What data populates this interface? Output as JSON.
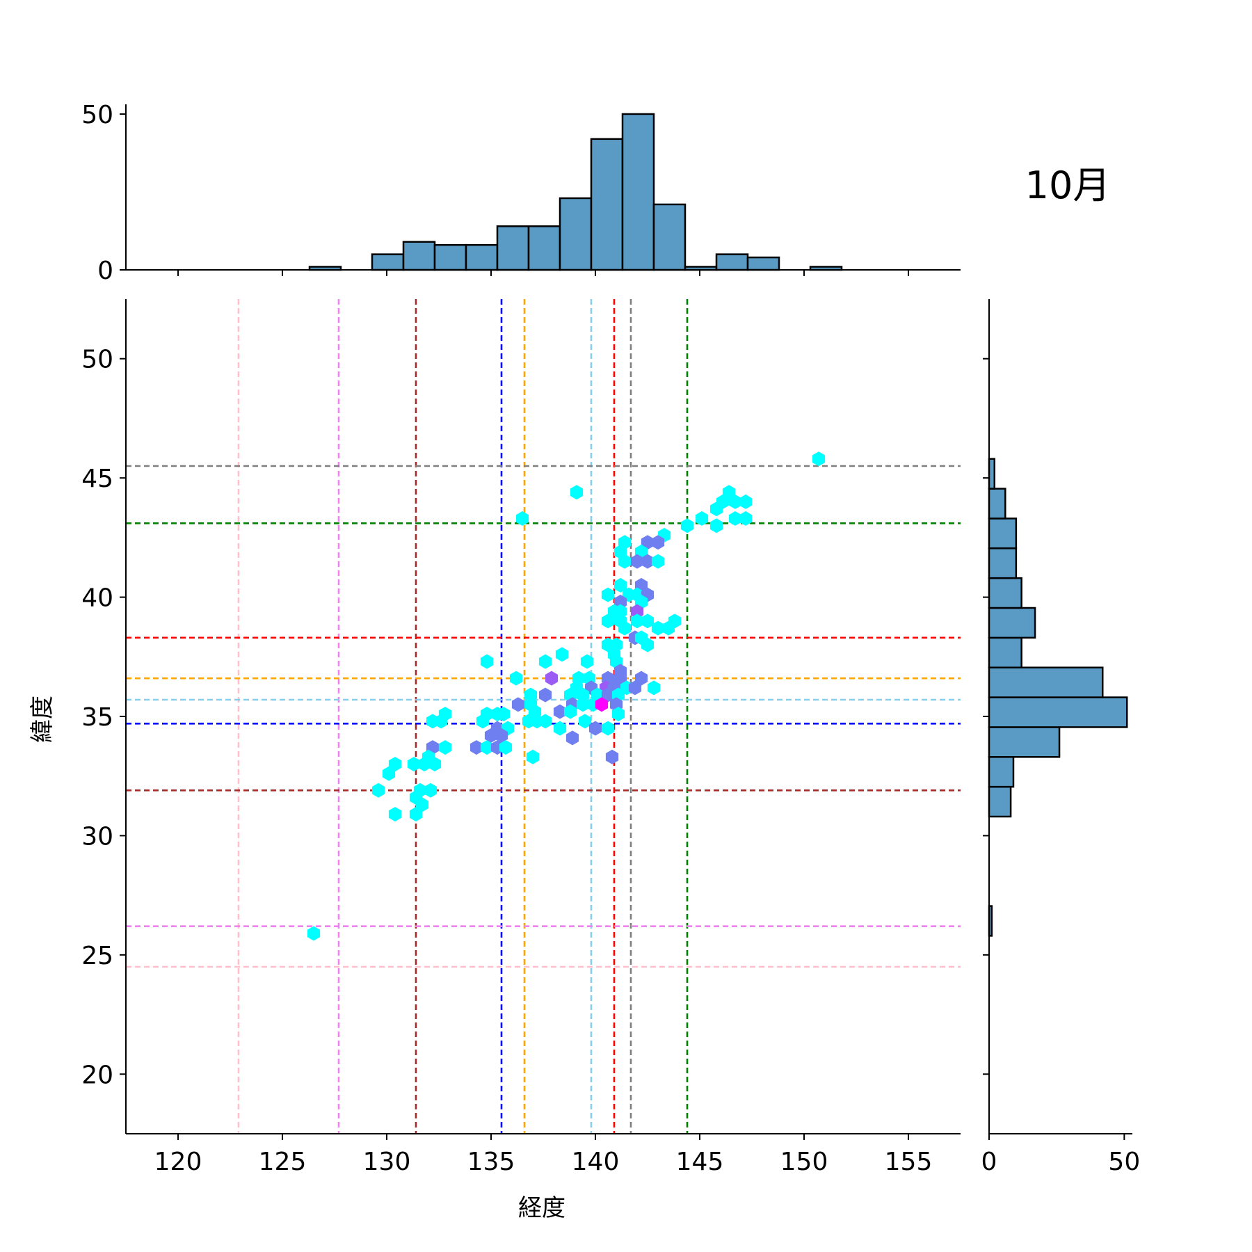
{
  "chart_data": {
    "type": "hexbin-jointplot",
    "title": "10月",
    "xlabel": "経度",
    "ylabel": "緯度",
    "xlim": [
      117.5,
      157.5
    ],
    "ylim": [
      17.5,
      52.5
    ],
    "xticks": [
      120,
      125,
      130,
      135,
      140,
      145,
      150,
      155
    ],
    "yticks": [
      20,
      25,
      30,
      35,
      40,
      45,
      50
    ],
    "marginal_x": {
      "ylim": [
        0,
        52
      ],
      "yticks": [
        0,
        50
      ],
      "bin_edges": [
        126.3,
        127.8,
        129.3,
        130.8,
        132.3,
        133.8,
        135.3,
        136.8,
        138.3,
        139.8,
        141.3,
        142.8,
        144.3,
        145.8,
        147.3,
        148.8,
        150.3,
        151.8
      ],
      "counts": [
        1,
        0,
        5,
        9,
        8,
        8,
        14,
        14,
        23,
        42,
        50,
        21,
        1,
        5,
        4,
        0,
        1
      ]
    },
    "marginal_y": {
      "xlim": [
        0,
        53
      ],
      "xticks": [
        0,
        50
      ],
      "bin_edges": [
        25.8,
        27.05,
        28.3,
        29.55,
        30.8,
        32.05,
        33.3,
        34.55,
        35.8,
        37.05,
        38.3,
        39.55,
        40.8,
        42.05,
        43.3,
        44.55,
        45.8
      ],
      "counts": [
        1,
        0,
        0,
        0,
        8,
        9,
        26,
        51,
        42,
        12,
        17,
        12,
        10,
        10,
        6,
        2
      ]
    },
    "vertical_lines": [
      {
        "x": 122.9,
        "color": "#ffc0cb"
      },
      {
        "x": 127.7,
        "color": "#ee82ee"
      },
      {
        "x": 131.4,
        "color": "#a52a2a"
      },
      {
        "x": 135.5,
        "color": "#0000ff"
      },
      {
        "x": 136.6,
        "color": "#ffa500"
      },
      {
        "x": 139.8,
        "color": "#87ceeb"
      },
      {
        "x": 140.9,
        "color": "#ff0000"
      },
      {
        "x": 141.7,
        "color": "#808080"
      },
      {
        "x": 144.4,
        "color": "#008000"
      }
    ],
    "horizontal_lines": [
      {
        "y": 45.5,
        "color": "#808080"
      },
      {
        "y": 43.1,
        "color": "#008000"
      },
      {
        "y": 38.3,
        "color": "#ff0000"
      },
      {
        "y": 36.6,
        "color": "#ffa500"
      },
      {
        "y": 35.7,
        "color": "#87ceeb"
      },
      {
        "y": 34.7,
        "color": "#0000ff"
      },
      {
        "y": 31.9,
        "color": "#a52a2a"
      },
      {
        "y": 26.2,
        "color": "#ee82ee"
      },
      {
        "y": 24.5,
        "color": "#ffc0cb"
      }
    ],
    "hexbins": [
      {
        "x": 150.7,
        "y": 45.8,
        "c": "#00ffff"
      },
      {
        "x": 139.1,
        "y": 44.4,
        "c": "#00ffff"
      },
      {
        "x": 136.5,
        "y": 43.3,
        "c": "#00ffff"
      },
      {
        "x": 146.4,
        "y": 44.4,
        "c": "#00ffff"
      },
      {
        "x": 146.1,
        "y": 44.0,
        "c": "#00ffff"
      },
      {
        "x": 146.7,
        "y": 44.0,
        "c": "#00ffff"
      },
      {
        "x": 147.2,
        "y": 44.0,
        "c": "#00ffff"
      },
      {
        "x": 145.8,
        "y": 43.7,
        "c": "#00ffff"
      },
      {
        "x": 145.1,
        "y": 43.3,
        "c": "#00ffff"
      },
      {
        "x": 146.7,
        "y": 43.3,
        "c": "#00ffff"
      },
      {
        "x": 147.2,
        "y": 43.3,
        "c": "#00ffff"
      },
      {
        "x": 144.4,
        "y": 43.0,
        "c": "#00ffff"
      },
      {
        "x": 145.8,
        "y": 43.0,
        "c": "#00ffff"
      },
      {
        "x": 143.3,
        "y": 42.6,
        "c": "#00ffff"
      },
      {
        "x": 141.4,
        "y": 42.3,
        "c": "#00ffff"
      },
      {
        "x": 142.5,
        "y": 42.3,
        "c": "#6f7ff0"
      },
      {
        "x": 143.0,
        "y": 42.3,
        "c": "#6f7ff0"
      },
      {
        "x": 141.2,
        "y": 41.9,
        "c": "#00ffff"
      },
      {
        "x": 142.2,
        "y": 41.9,
        "c": "#00ffff"
      },
      {
        "x": 141.4,
        "y": 41.5,
        "c": "#00ffff"
      },
      {
        "x": 142.0,
        "y": 41.5,
        "c": "#6f7ff0"
      },
      {
        "x": 142.5,
        "y": 41.5,
        "c": "#6f7ff0"
      },
      {
        "x": 143.0,
        "y": 41.5,
        "c": "#00ffff"
      },
      {
        "x": 141.2,
        "y": 40.5,
        "c": "#00ffff"
      },
      {
        "x": 142.2,
        "y": 40.5,
        "c": "#6f7ff0"
      },
      {
        "x": 140.6,
        "y": 40.1,
        "c": "#00ffff"
      },
      {
        "x": 141.6,
        "y": 40.1,
        "c": "#00ffff"
      },
      {
        "x": 142.0,
        "y": 40.1,
        "c": "#00ffff"
      },
      {
        "x": 142.5,
        "y": 40.1,
        "c": "#6f7ff0"
      },
      {
        "x": 141.2,
        "y": 39.8,
        "c": "#6f7ff0"
      },
      {
        "x": 142.2,
        "y": 39.8,
        "c": "#00ffff"
      },
      {
        "x": 140.9,
        "y": 39.4,
        "c": "#00ffff"
      },
      {
        "x": 141.2,
        "y": 39.4,
        "c": "#00ffff"
      },
      {
        "x": 142.0,
        "y": 39.4,
        "c": "#9a5cf5"
      },
      {
        "x": 140.6,
        "y": 39.0,
        "c": "#00ffff"
      },
      {
        "x": 141.2,
        "y": 39.0,
        "c": "#00ffff"
      },
      {
        "x": 142.0,
        "y": 39.0,
        "c": "#00ffff"
      },
      {
        "x": 142.5,
        "y": 39.0,
        "c": "#00ffff"
      },
      {
        "x": 143.8,
        "y": 39.0,
        "c": "#00ffff"
      },
      {
        "x": 141.4,
        "y": 38.7,
        "c": "#00ffff"
      },
      {
        "x": 143.0,
        "y": 38.7,
        "c": "#00ffff"
      },
      {
        "x": 143.5,
        "y": 38.7,
        "c": "#00ffff"
      },
      {
        "x": 141.9,
        "y": 38.3,
        "c": "#6f7ff0"
      },
      {
        "x": 142.2,
        "y": 38.3,
        "c": "#00ffff"
      },
      {
        "x": 140.6,
        "y": 38.0,
        "c": "#00ffff"
      },
      {
        "x": 141.0,
        "y": 38.0,
        "c": "#00ffff"
      },
      {
        "x": 142.5,
        "y": 38.0,
        "c": "#00ffff"
      },
      {
        "x": 138.4,
        "y": 37.6,
        "c": "#00ffff"
      },
      {
        "x": 140.9,
        "y": 37.6,
        "c": "#00ffff"
      },
      {
        "x": 134.8,
        "y": 37.3,
        "c": "#00ffff"
      },
      {
        "x": 137.6,
        "y": 37.3,
        "c": "#00ffff"
      },
      {
        "x": 139.6,
        "y": 37.3,
        "c": "#00ffff"
      },
      {
        "x": 141.0,
        "y": 37.3,
        "c": "#00ffff"
      },
      {
        "x": 141.2,
        "y": 36.9,
        "c": "#6f7ff0"
      },
      {
        "x": 136.2,
        "y": 36.6,
        "c": "#00ffff"
      },
      {
        "x": 137.9,
        "y": 36.6,
        "c": "#9a5cf5"
      },
      {
        "x": 139.2,
        "y": 36.6,
        "c": "#00ffff"
      },
      {
        "x": 139.7,
        "y": 36.6,
        "c": "#00ffff"
      },
      {
        "x": 140.6,
        "y": 36.6,
        "c": "#6f7ff0"
      },
      {
        "x": 141.2,
        "y": 36.6,
        "c": "#6f7ff0"
      },
      {
        "x": 142.2,
        "y": 36.6,
        "c": "#6f7ff0"
      },
      {
        "x": 139.1,
        "y": 36.2,
        "c": "#00ffff"
      },
      {
        "x": 139.8,
        "y": 36.2,
        "c": "#6f7ff0"
      },
      {
        "x": 140.5,
        "y": 36.2,
        "c": "#9a5cf5"
      },
      {
        "x": 140.9,
        "y": 36.2,
        "c": "#6f7ff0"
      },
      {
        "x": 141.5,
        "y": 36.2,
        "c": "#00ffff"
      },
      {
        "x": 141.9,
        "y": 36.2,
        "c": "#6f7ff0"
      },
      {
        "x": 142.8,
        "y": 36.2,
        "c": "#00ffff"
      },
      {
        "x": 136.9,
        "y": 35.9,
        "c": "#00ffff"
      },
      {
        "x": 137.6,
        "y": 35.9,
        "c": "#6f7ff0"
      },
      {
        "x": 138.8,
        "y": 35.9,
        "c": "#00ffff"
      },
      {
        "x": 139.4,
        "y": 35.9,
        "c": "#00ffff"
      },
      {
        "x": 140.1,
        "y": 35.9,
        "c": "#00ffff"
      },
      {
        "x": 140.6,
        "y": 35.9,
        "c": "#6f7ff0"
      },
      {
        "x": 141.1,
        "y": 35.9,
        "c": "#00ffff"
      },
      {
        "x": 136.3,
        "y": 35.5,
        "c": "#6f7ff0"
      },
      {
        "x": 136.9,
        "y": 35.5,
        "c": "#00ffff"
      },
      {
        "x": 138.9,
        "y": 35.5,
        "c": "#6f7ff0"
      },
      {
        "x": 139.4,
        "y": 35.5,
        "c": "#00ffff"
      },
      {
        "x": 139.9,
        "y": 35.5,
        "c": "#00ffff"
      },
      {
        "x": 140.3,
        "y": 35.5,
        "c": "#ff00ff"
      },
      {
        "x": 141.0,
        "y": 35.5,
        "c": "#6f7ff0"
      },
      {
        "x": 137.1,
        "y": 35.2,
        "c": "#00ffff"
      },
      {
        "x": 138.3,
        "y": 35.2,
        "c": "#6f7ff0"
      },
      {
        "x": 138.8,
        "y": 35.2,
        "c": "#00ffff"
      },
      {
        "x": 134.8,
        "y": 35.1,
        "c": "#00ffff"
      },
      {
        "x": 135.3,
        "y": 35.1,
        "c": "#00ffff"
      },
      {
        "x": 135.6,
        "y": 35.1,
        "c": "#00ffff"
      },
      {
        "x": 132.8,
        "y": 35.1,
        "c": "#00ffff"
      },
      {
        "x": 141.1,
        "y": 35.1,
        "c": "#00ffff"
      },
      {
        "x": 132.2,
        "y": 34.8,
        "c": "#00ffff"
      },
      {
        "x": 132.6,
        "y": 34.8,
        "c": "#00ffff"
      },
      {
        "x": 134.6,
        "y": 34.8,
        "c": "#00ffff"
      },
      {
        "x": 136.8,
        "y": 34.8,
        "c": "#00ffff"
      },
      {
        "x": 137.2,
        "y": 34.8,
        "c": "#00ffff"
      },
      {
        "x": 137.6,
        "y": 34.8,
        "c": "#00ffff"
      },
      {
        "x": 139.5,
        "y": 34.8,
        "c": "#00ffff"
      },
      {
        "x": 135.3,
        "y": 34.5,
        "c": "#6f7ff0"
      },
      {
        "x": 135.8,
        "y": 34.5,
        "c": "#00ffff"
      },
      {
        "x": 138.3,
        "y": 34.5,
        "c": "#00ffff"
      },
      {
        "x": 140.0,
        "y": 34.5,
        "c": "#6f7ff0"
      },
      {
        "x": 140.6,
        "y": 34.5,
        "c": "#00ffff"
      },
      {
        "x": 135.0,
        "y": 34.2,
        "c": "#6f7ff0"
      },
      {
        "x": 135.5,
        "y": 34.2,
        "c": "#6f7ff0"
      },
      {
        "x": 138.9,
        "y": 34.1,
        "c": "#6f7ff0"
      },
      {
        "x": 132.2,
        "y": 33.7,
        "c": "#6f7ff0"
      },
      {
        "x": 132.8,
        "y": 33.7,
        "c": "#00ffff"
      },
      {
        "x": 134.3,
        "y": 33.7,
        "c": "#6f7ff0"
      },
      {
        "x": 134.8,
        "y": 33.7,
        "c": "#00ffff"
      },
      {
        "x": 135.3,
        "y": 33.7,
        "c": "#6f7ff0"
      },
      {
        "x": 135.7,
        "y": 33.7,
        "c": "#00ffff"
      },
      {
        "x": 132.0,
        "y": 33.3,
        "c": "#00ffff"
      },
      {
        "x": 137.0,
        "y": 33.3,
        "c": "#00ffff"
      },
      {
        "x": 140.8,
        "y": 33.3,
        "c": "#6f7ff0"
      },
      {
        "x": 130.4,
        "y": 33.0,
        "c": "#00ffff"
      },
      {
        "x": 131.3,
        "y": 33.0,
        "c": "#00ffff"
      },
      {
        "x": 131.8,
        "y": 33.0,
        "c": "#00ffff"
      },
      {
        "x": 132.3,
        "y": 33.0,
        "c": "#00ffff"
      },
      {
        "x": 130.1,
        "y": 32.6,
        "c": "#00ffff"
      },
      {
        "x": 129.6,
        "y": 31.9,
        "c": "#00ffff"
      },
      {
        "x": 131.6,
        "y": 31.9,
        "c": "#00ffff"
      },
      {
        "x": 132.1,
        "y": 31.9,
        "c": "#00ffff"
      },
      {
        "x": 131.4,
        "y": 31.6,
        "c": "#00ffff"
      },
      {
        "x": 131.7,
        "y": 31.3,
        "c": "#00ffff"
      },
      {
        "x": 130.4,
        "y": 30.9,
        "c": "#00ffff"
      },
      {
        "x": 131.4,
        "y": 30.9,
        "c": "#00ffff"
      },
      {
        "x": 126.5,
        "y": 25.9,
        "c": "#00ffff"
      }
    ]
  },
  "colors": {
    "bar_fill": "#5a9bc6",
    "bar_edge": "#000000",
    "axis": "#000000"
  }
}
